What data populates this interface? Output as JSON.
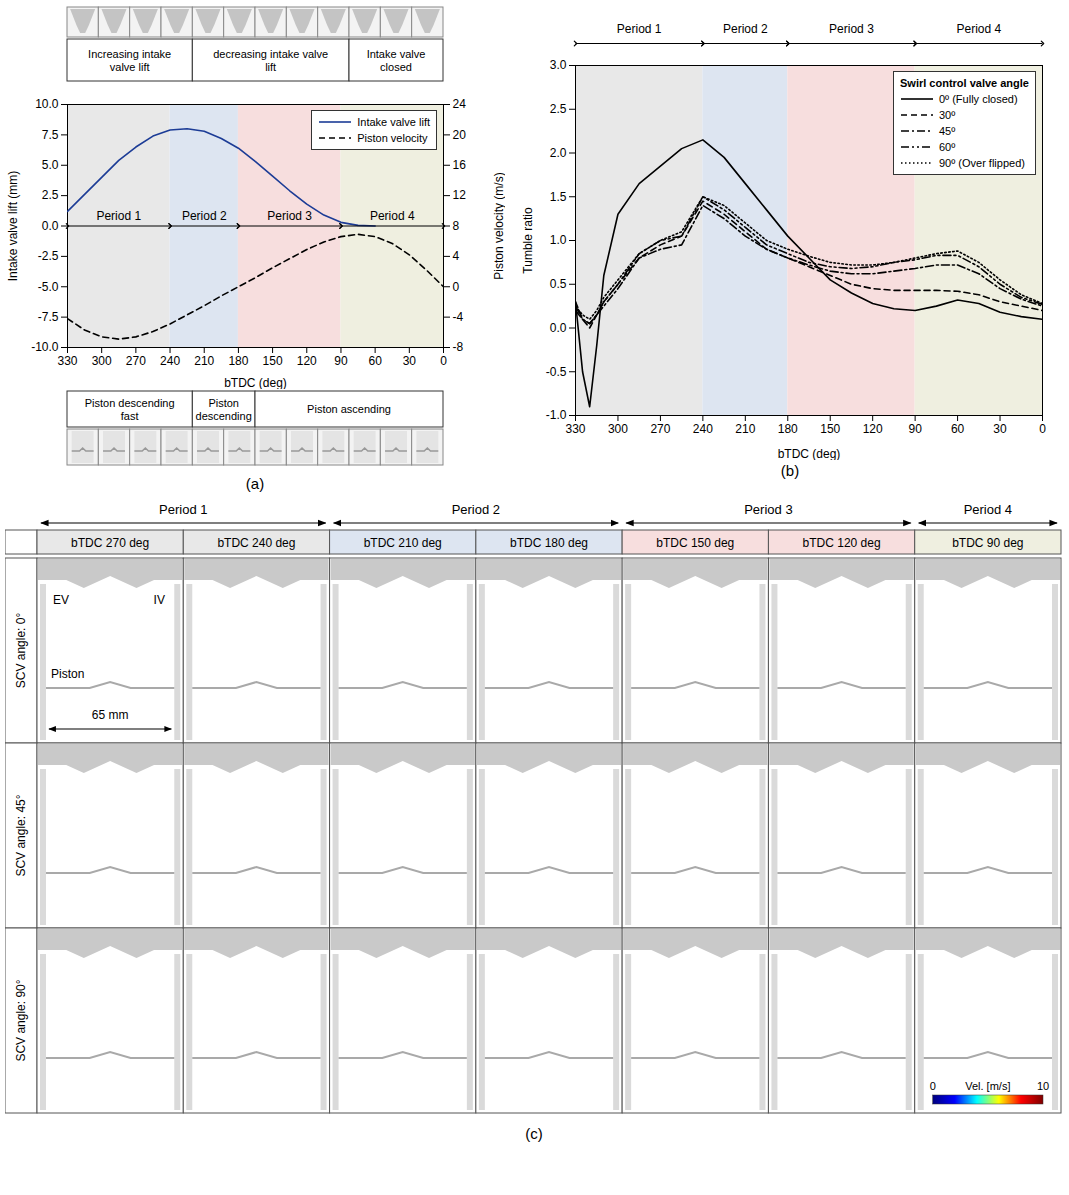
{
  "chart_data": [
    {
      "type": "line",
      "panel": "(a)",
      "x": [
        330,
        315,
        300,
        285,
        270,
        255,
        240,
        225,
        210,
        195,
        180,
        165,
        150,
        135,
        120,
        105,
        90,
        75,
        60,
        45,
        30,
        15,
        0
      ],
      "xlim": [
        330,
        0
      ],
      "xticks": [
        330,
        300,
        270,
        240,
        210,
        180,
        150,
        120,
        90,
        60,
        30,
        0
      ],
      "xlabel": "bTDC (deg)",
      "ylabel": "Intake valve lift (mm)",
      "ylim": [
        -10,
        10
      ],
      "yticks": [
        {
          "value": -10,
          "label": "-10.0"
        },
        {
          "value": -7.5,
          "label": "-7.5"
        },
        {
          "value": -5,
          "label": "-5.0"
        },
        {
          "value": -2.5,
          "label": "-2.5"
        },
        {
          "value": 0,
          "label": "0.0"
        },
        {
          "value": 2.5,
          "label": "2.5"
        },
        {
          "value": 5,
          "label": "5.0"
        },
        {
          "value": 7.5,
          "label": "7.5"
        },
        {
          "value": 10,
          "label": "10.0"
        }
      ],
      "y2label": "Piston velocity (m/s)",
      "y2lim": [
        -8,
        24
      ],
      "y2ticks": [
        -8,
        -4,
        0,
        4,
        8,
        12,
        16,
        20,
        24
      ],
      "grid": false,
      "legend": "top-right",
      "series": [
        {
          "name": "Intake valve lift",
          "color": "#1c3c96",
          "line_style": "solid",
          "values": [
            1.2,
            2.6,
            4.0,
            5.4,
            6.5,
            7.4,
            7.9,
            8.0,
            7.8,
            7.2,
            6.4,
            5.3,
            4.1,
            2.9,
            1.8,
            0.9,
            0.3,
            0.05,
            0.0,
            null,
            null,
            null,
            null
          ]
        },
        {
          "name": "Piston velocity",
          "color": "#000000",
          "line_style": "dashed",
          "axis": "y2",
          "values": [
            -4.2,
            -5.7,
            -6.6,
            -6.9,
            -6.6,
            -5.9,
            -4.9,
            -3.7,
            -2.5,
            -1.2,
            0,
            1.2,
            2.5,
            3.7,
            4.9,
            5.9,
            6.6,
            6.9,
            6.6,
            5.7,
            4.2,
            2.2,
            0
          ]
        }
      ],
      "periods": [
        {
          "label": "Period 1",
          "start": 330,
          "end": 240,
          "color": "#e8e8e8"
        },
        {
          "label": "Period 2",
          "start": 240,
          "end": 180,
          "color": "#dde5f1"
        },
        {
          "label": "Period 3",
          "start": 180,
          "end": 90,
          "color": "#f7dede"
        },
        {
          "label": "Period 4",
          "start": 90,
          "end": 0,
          "color": "#efefe0"
        }
      ],
      "valve_phases": [
        {
          "label": "Increasing intake valve lift",
          "frames": 4
        },
        {
          "label": "decreasing intake valve lift",
          "frames": 5
        },
        {
          "label": "Intake valve closed",
          "frames": 3
        }
      ],
      "piston_phases": [
        {
          "label": "Piston descending fast",
          "frames": 4
        },
        {
          "label": "Piston descending",
          "frames": 2
        },
        {
          "label": "Piston ascending",
          "frames": 6
        }
      ]
    },
    {
      "type": "line",
      "panel": "(b)",
      "x": [
        330,
        325,
        320,
        315,
        310,
        300,
        285,
        270,
        255,
        240,
        225,
        210,
        195,
        180,
        165,
        150,
        135,
        120,
        105,
        90,
        75,
        60,
        45,
        30,
        15,
        0
      ],
      "xlim": [
        330,
        0
      ],
      "xticks": [
        330,
        300,
        270,
        240,
        210,
        180,
        150,
        120,
        90,
        60,
        30,
        0
      ],
      "xlabel": "bTDC (deg)",
      "ylabel": "Tumble ratio",
      "ylim": [
        -1,
        3
      ],
      "yticks": [
        {
          "value": -1,
          "label": "-1.0"
        },
        {
          "value": -0.5,
          "label": "-0.5"
        },
        {
          "value": 0,
          "label": "0.0"
        },
        {
          "value": 0.5,
          "label": "0.5"
        },
        {
          "value": 1,
          "label": "1.0"
        },
        {
          "value": 1.5,
          "label": "1.5"
        },
        {
          "value": 2,
          "label": "2.0"
        },
        {
          "value": 2.5,
          "label": "2.5"
        },
        {
          "value": 3,
          "label": "3.0"
        }
      ],
      "grid": false,
      "legend": "top-right",
      "legend_title": "Swirl control valve angle",
      "series": [
        {
          "name": "0º (Fully closed)",
          "color": "#000000",
          "line_style": "solid",
          "values": [
            0.3,
            -0.5,
            -0.9,
            -0.2,
            0.6,
            1.3,
            1.65,
            1.85,
            2.05,
            2.15,
            1.95,
            1.65,
            1.35,
            1.05,
            0.8,
            0.55,
            0.4,
            0.28,
            0.22,
            0.2,
            0.25,
            0.32,
            0.28,
            0.18,
            0.13,
            0.1
          ]
        },
        {
          "name": "30º",
          "color": "#000000",
          "line_style": "dashed",
          "values": [
            0.3,
            0.1,
            0.0,
            0.15,
            0.3,
            0.5,
            0.8,
            0.95,
            1.05,
            1.45,
            1.3,
            1.1,
            0.9,
            0.8,
            0.7,
            0.6,
            0.5,
            0.45,
            0.43,
            0.43,
            0.43,
            0.42,
            0.38,
            0.3,
            0.25,
            0.2
          ]
        },
        {
          "name": "45º",
          "color": "#000000",
          "line_style": "dashdot",
          "values": [
            0.2,
            0.1,
            0.05,
            0.15,
            0.25,
            0.45,
            0.8,
            0.9,
            0.95,
            1.4,
            1.25,
            1.05,
            0.9,
            0.8,
            0.72,
            0.65,
            0.62,
            0.62,
            0.65,
            0.68,
            0.72,
            0.72,
            0.62,
            0.45,
            0.33,
            0.25
          ]
        },
        {
          "name": "60º",
          "color": "#000000",
          "line_style": "dashdotdot",
          "values": [
            0.25,
            0.1,
            0.05,
            0.15,
            0.3,
            0.5,
            0.85,
            1.0,
            1.05,
            1.5,
            1.35,
            1.15,
            0.95,
            0.85,
            0.75,
            0.7,
            0.68,
            0.7,
            0.75,
            0.78,
            0.83,
            0.83,
            0.7,
            0.5,
            0.35,
            0.27
          ]
        },
        {
          "name": "90º (Over flipped)",
          "color": "#000000",
          "line_style": "dotted",
          "values": [
            0.25,
            0.15,
            0.1,
            0.2,
            0.35,
            0.55,
            0.85,
            1.0,
            1.1,
            1.5,
            1.4,
            1.2,
            1.0,
            0.9,
            0.82,
            0.75,
            0.72,
            0.72,
            0.75,
            0.8,
            0.85,
            0.88,
            0.75,
            0.55,
            0.38,
            0.28
          ]
        }
      ],
      "periods": [
        {
          "label": "Period 1",
          "start": 330,
          "end": 240,
          "color": "#e8e8e8"
        },
        {
          "label": "Period 2",
          "start": 240,
          "end": 180,
          "color": "#dde5f1"
        },
        {
          "label": "Period 3",
          "start": 180,
          "end": 90,
          "color": "#f7dede"
        },
        {
          "label": "Period 4",
          "start": 90,
          "end": 0,
          "color": "#efefe0"
        }
      ]
    }
  ],
  "panel_c": {
    "panel": "(c)",
    "periods": [
      {
        "label": "Period 1",
        "color": "#e8e8e8",
        "columns": [
          "bTDC 270 deg",
          "bTDC 240 deg"
        ]
      },
      {
        "label": "Period 2",
        "color": "#dde5f1",
        "columns": [
          "bTDC 210 deg",
          "bTDC 180 deg"
        ]
      },
      {
        "label": "Period 3",
        "color": "#f7dede",
        "columns": [
          "bTDC 150 deg",
          "bTDC 120 deg"
        ]
      },
      {
        "label": "Period 4",
        "color": "#efefe0",
        "columns": [
          "bTDC 90 deg"
        ]
      }
    ],
    "rows": [
      "SCV angle: 0°",
      "SCV angle: 45°",
      "SCV angle: 90°"
    ],
    "labels": {
      "exhaust_valve": "EV",
      "intake_valve": "IV",
      "piston": "Piston",
      "bore": "65 mm"
    },
    "colorbar": {
      "label": "Vel. [m/s]",
      "range": [
        0,
        10
      ],
      "ticks": [
        0,
        10
      ],
      "colors": [
        "#00007f",
        "#0000ff",
        "#00ffff",
        "#ffff00",
        "#ff0000",
        "#7f0000"
      ]
    }
  }
}
